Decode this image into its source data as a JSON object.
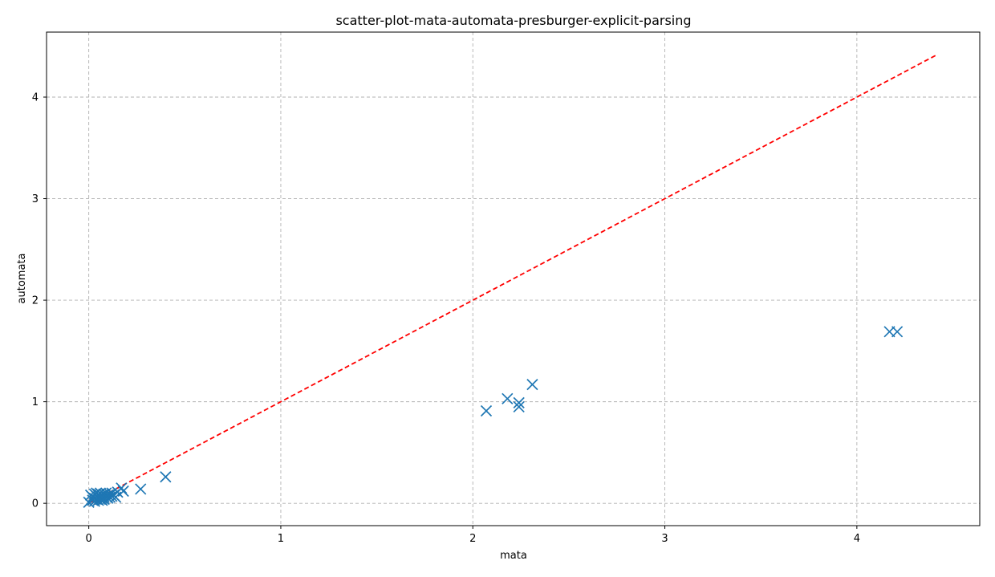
{
  "chart_data": {
    "type": "scatter",
    "title": "scatter-plot-mata-automata-presburger-explicit-parsing",
    "xlabel": "mata",
    "ylabel": "automata",
    "xlim": [
      -0.22,
      4.64
    ],
    "ylim": [
      -0.22,
      4.64
    ],
    "xticks": [
      0,
      1,
      2,
      3,
      4
    ],
    "yticks": [
      0,
      1,
      2,
      3,
      4
    ],
    "xtick_labels": [
      "0",
      "1",
      "2",
      "3",
      "4"
    ],
    "ytick_labels": [
      "0",
      "1",
      "2",
      "3",
      "4"
    ],
    "grid": true,
    "marker": "x",
    "colors": {
      "points": "#1f77b4",
      "diagonal": "#ff0000",
      "grid": "#b0b0b0"
    },
    "series": [
      {
        "x": [
          0.0,
          0.01,
          0.02,
          0.02,
          0.03,
          0.03,
          0.03,
          0.04,
          0.04,
          0.04,
          0.05,
          0.05,
          0.05,
          0.06,
          0.06,
          0.06,
          0.07,
          0.07,
          0.07,
          0.08,
          0.08,
          0.08,
          0.09,
          0.09,
          0.1,
          0.1,
          0.11,
          0.11,
          0.12,
          0.12,
          0.13,
          0.14,
          0.15,
          0.17,
          0.18,
          0.27,
          0.4,
          2.07,
          2.18,
          2.24,
          2.24,
          2.31,
          4.17,
          4.21
        ],
        "y": [
          0.01,
          0.08,
          0.03,
          0.06,
          0.02,
          0.05,
          0.09,
          0.04,
          0.07,
          0.1,
          0.03,
          0.06,
          0.09,
          0.04,
          0.07,
          0.1,
          0.05,
          0.08,
          0.03,
          0.06,
          0.09,
          0.04,
          0.07,
          0.1,
          0.05,
          0.08,
          0.06,
          0.09,
          0.07,
          0.1,
          0.08,
          0.06,
          0.11,
          0.15,
          0.12,
          0.14,
          0.26,
          0.91,
          1.03,
          0.95,
          0.99,
          1.17,
          1.69,
          1.69
        ]
      }
    ],
    "reference_line": {
      "style": "dashed",
      "x": [
        0,
        4.42
      ],
      "y": [
        0,
        4.42
      ]
    }
  }
}
